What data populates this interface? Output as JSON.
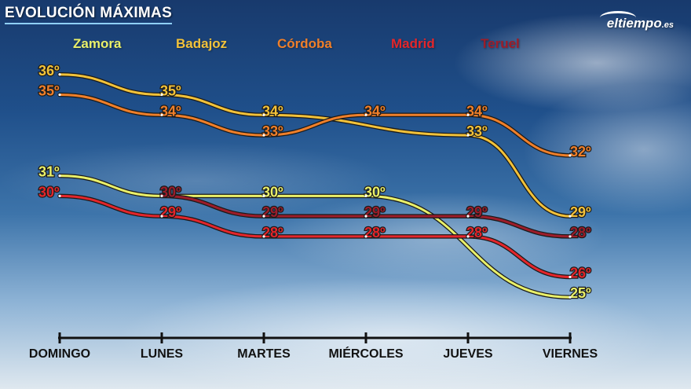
{
  "title": "EVOLUCIÓN MÁXIMAS",
  "logo": {
    "text": "eltiempo",
    "suffix": ".es"
  },
  "chart_data": {
    "type": "line",
    "title": "EVOLUCIÓN MÁXIMAS",
    "categories": [
      "DOMINGO",
      "LUNES",
      "MARTES",
      "MIÉRCOLES",
      "JUEVES",
      "VIERNES"
    ],
    "unit": "º",
    "ylim": [
      24,
      37
    ],
    "grid": false,
    "legend_position": "top",
    "series": [
      {
        "name": "Zamora",
        "color": "#e9f06a",
        "values": [
          31,
          30,
          30,
          30,
          null,
          25
        ]
      },
      {
        "name": "Badajoz",
        "color": "#f2c23a",
        "values": [
          36,
          35,
          34,
          null,
          33,
          29
        ]
      },
      {
        "name": "Córdoba",
        "color": "#ef7f2a",
        "values": [
          35,
          34,
          33,
          34,
          34,
          32
        ]
      },
      {
        "name": "Madrid",
        "color": "#e3262b",
        "values": [
          30,
          29,
          28,
          28,
          28,
          26
        ]
      },
      {
        "name": "Teruel",
        "color": "#9c1d2a",
        "values": [
          null,
          30,
          29,
          29,
          29,
          28
        ]
      }
    ]
  }
}
